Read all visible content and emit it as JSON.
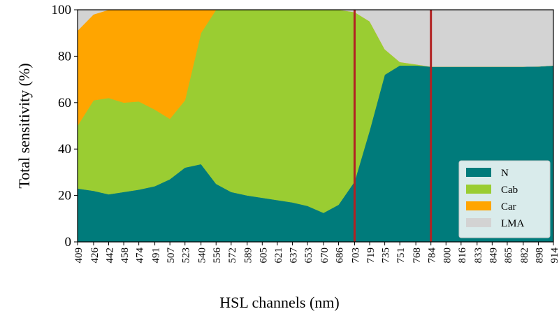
{
  "chart_data": {
    "type": "stacked_area",
    "xlabel": "HSL channels (nm)",
    "ylabel": "Total sensitivity (%)",
    "x": [
      409,
      426,
      442,
      458,
      474,
      491,
      507,
      523,
      540,
      556,
      572,
      589,
      605,
      621,
      637,
      653,
      670,
      686,
      703,
      719,
      735,
      751,
      768,
      784,
      800,
      816,
      833,
      849,
      865,
      882,
      898,
      914
    ],
    "xlim": [
      409,
      914
    ],
    "xticks": [
      409,
      426,
      442,
      458,
      474,
      491,
      507,
      523,
      540,
      556,
      572,
      589,
      605,
      621,
      637,
      653,
      670,
      686,
      703,
      719,
      735,
      751,
      768,
      784,
      800,
      816,
      833,
      849,
      865,
      882,
      898,
      914
    ],
    "ylim": [
      0,
      100
    ],
    "yticks": [
      0,
      20,
      40,
      60,
      80,
      100
    ],
    "legend": "lower right",
    "vlines": {
      "x": [
        703,
        784
      ],
      "color": "#b22222"
    },
    "series": [
      {
        "name": "N",
        "color": "#007b7b",
        "values": [
          23,
          22,
          20.5,
          21.5,
          22.5,
          24,
          27,
          32,
          33.5,
          25,
          21.5,
          20,
          19,
          18,
          17,
          15.5,
          12.5,
          16,
          26,
          48,
          72,
          76,
          76,
          75.5,
          75.5,
          75.5,
          75.5,
          75.5,
          75.5,
          75.5,
          75.6,
          76
        ]
      },
      {
        "name": "Cab",
        "color": "#9acd32",
        "values": [
          27,
          39,
          41.5,
          38.5,
          38,
          33,
          26,
          29,
          56.5,
          75,
          78.5,
          80,
          81,
          82,
          83,
          84.5,
          87.5,
          84,
          73,
          47,
          11,
          1.5,
          0.5,
          0,
          0,
          0,
          0,
          0,
          0,
          0,
          0,
          0
        ]
      },
      {
        "name": "Car",
        "color": "#ffa500",
        "values": [
          41,
          37,
          38,
          40,
          39.5,
          43,
          47,
          39,
          10,
          0,
          0,
          0,
          0,
          0,
          0,
          0,
          0,
          0,
          0,
          0,
          0,
          0,
          0,
          0,
          0,
          0,
          0,
          0,
          0,
          0,
          0,
          0
        ]
      },
      {
        "name": "LMA",
        "color": "#d3d3d3",
        "values": [
          9,
          2,
          0,
          0,
          0,
          0,
          0,
          0,
          0,
          0,
          0,
          0,
          0,
          0,
          0,
          0,
          0,
          0,
          1,
          5,
          17,
          22.5,
          23.5,
          24.5,
          24.5,
          24.5,
          24.5,
          24.5,
          24.5,
          24.5,
          24.4,
          24
        ]
      }
    ]
  }
}
